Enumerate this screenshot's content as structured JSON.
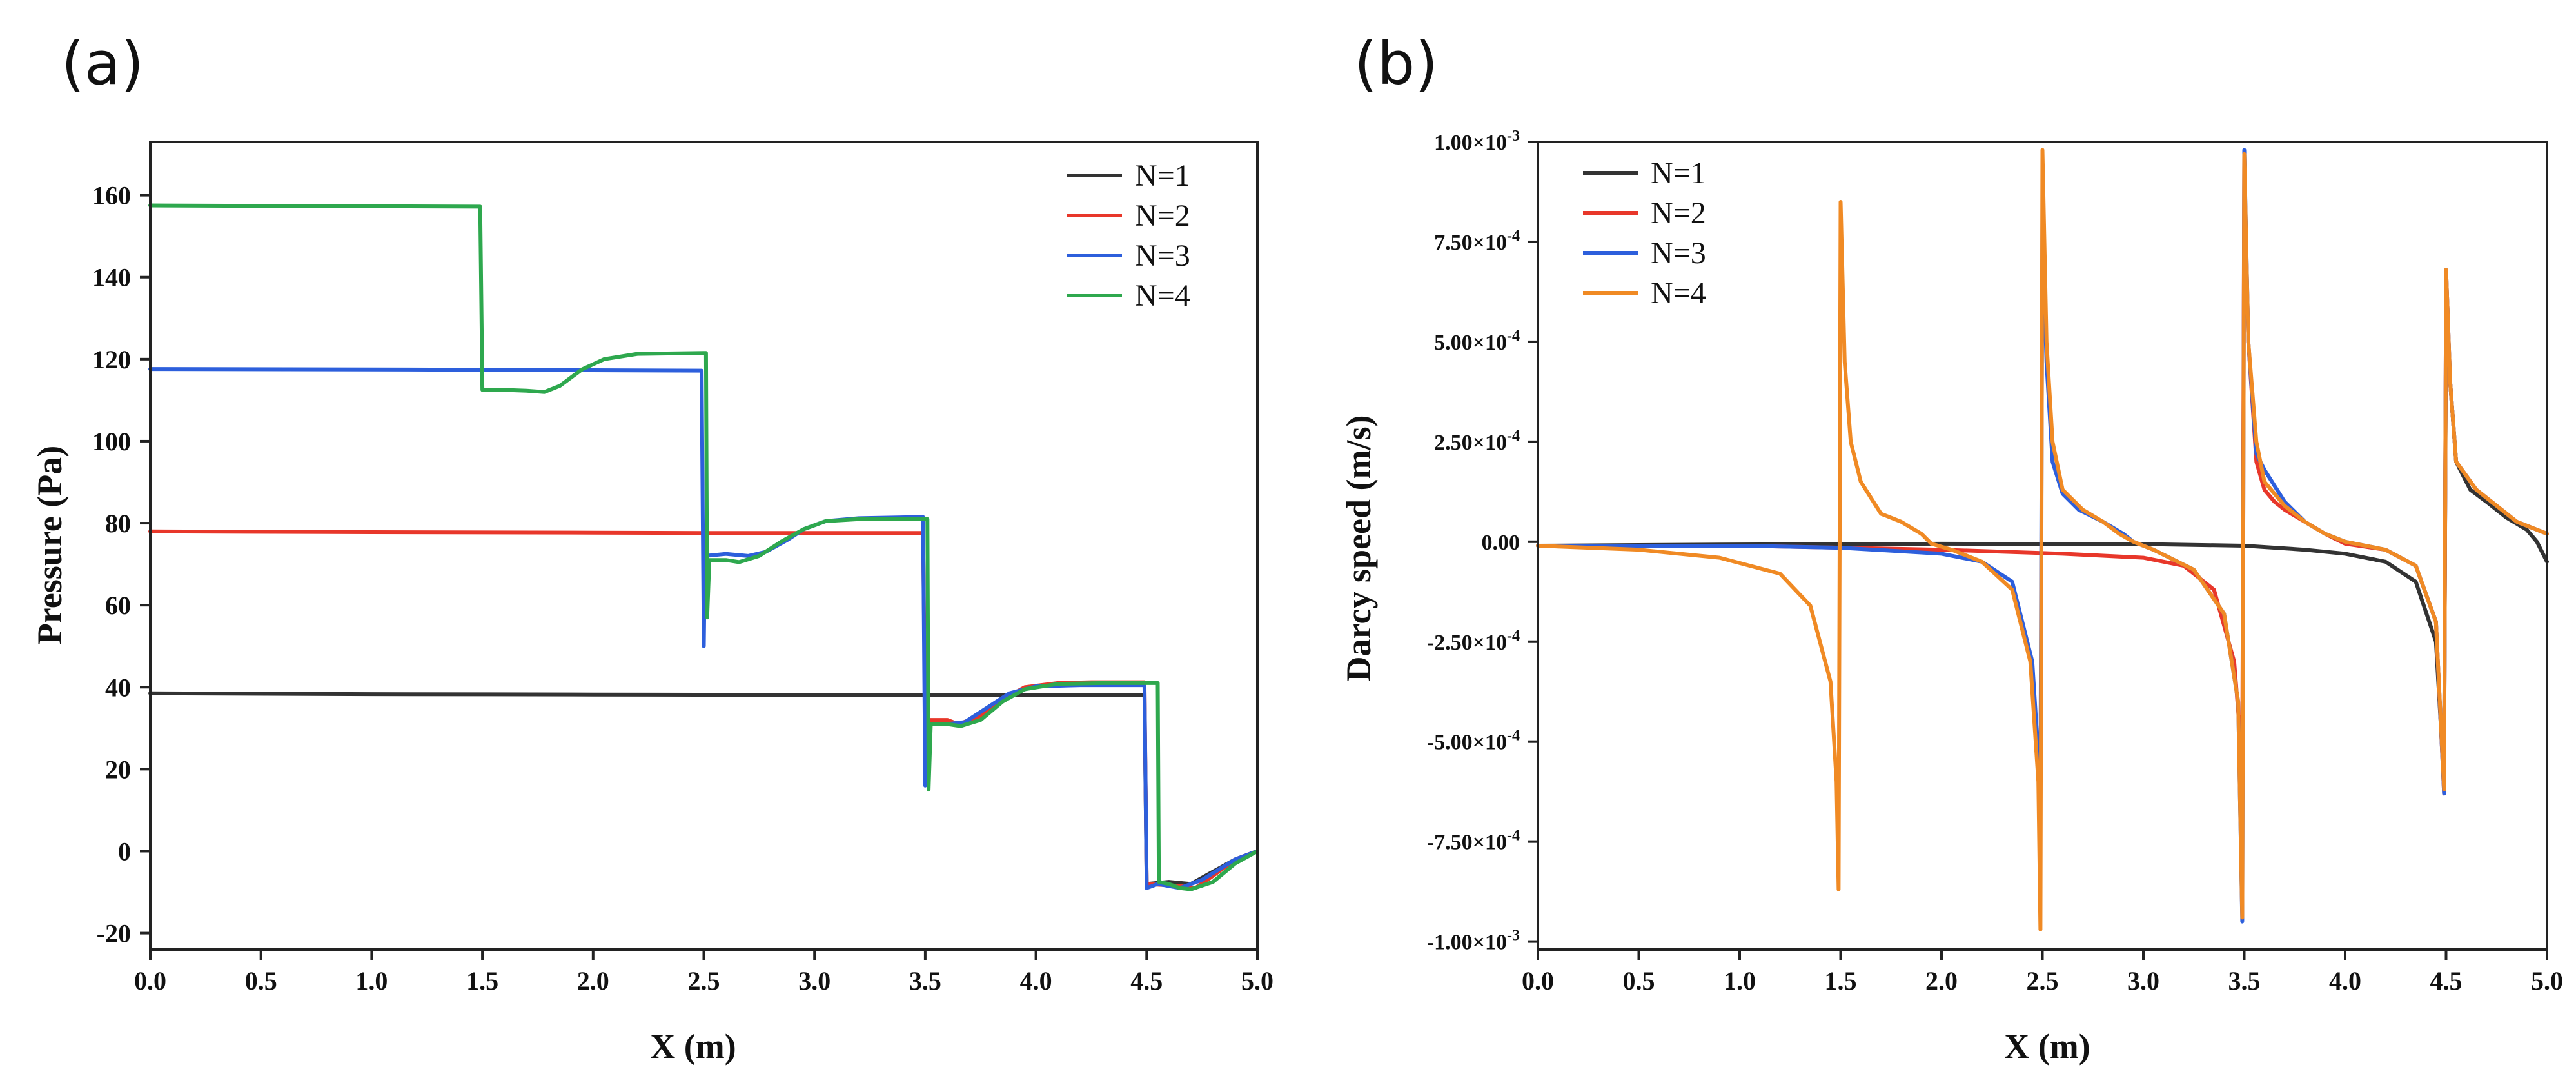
{
  "chart_data": [
    {
      "panel_label": "(a)",
      "type": "line",
      "title": "",
      "xlabel": "X (m)",
      "ylabel": "Pressure (Pa)",
      "xlim": [
        0,
        5
      ],
      "ylim": [
        -24,
        173
      ],
      "xticks": [
        0,
        0.5,
        1,
        1.5,
        2,
        2.5,
        3,
        3.5,
        4,
        4.5,
        5
      ],
      "xtick_labels": [
        "0.0",
        "0.5",
        "1.0",
        "1.5",
        "2.0",
        "2.5",
        "3.0",
        "3.5",
        "4.0",
        "4.5",
        "5.0"
      ],
      "yticks": [
        -20,
        0,
        20,
        40,
        60,
        80,
        100,
        120,
        140,
        160
      ],
      "ytick_labels": [
        "-20",
        "0",
        "20",
        "40",
        "60",
        "80",
        "100",
        "120",
        "140",
        "160"
      ],
      "legend_position": "top-right",
      "series": [
        {
          "name": "N=1",
          "color": "#333333",
          "points": [
            [
              0,
              38.5
            ],
            [
              1,
              38.3
            ],
            [
              2,
              38.2
            ],
            [
              3,
              38.1
            ],
            [
              4,
              38
            ],
            [
              4.49,
              38
            ],
            [
              4.5,
              -8
            ],
            [
              4.6,
              -7.5
            ],
            [
              4.7,
              -8
            ],
            [
              4.8,
              -5
            ],
            [
              4.9,
              -2
            ],
            [
              5,
              0
            ]
          ]
        },
        {
          "name": "N=2",
          "color": "#e8372a",
          "points": [
            [
              0,
              78
            ],
            [
              1,
              77.8
            ],
            [
              2,
              77.7
            ],
            [
              2.5,
              77.6
            ],
            [
              3,
              77.6
            ],
            [
              3.49,
              77.6
            ],
            [
              3.5,
              32
            ],
            [
              3.6,
              32
            ],
            [
              3.65,
              31
            ],
            [
              3.75,
              33
            ],
            [
              3.85,
              37
            ],
            [
              3.95,
              40
            ],
            [
              4.1,
              41
            ],
            [
              4.25,
              41.2
            ],
            [
              4.49,
              41.2
            ],
            [
              4.5,
              -8
            ],
            [
              4.65,
              -8.5
            ],
            [
              4.72,
              -9
            ],
            [
              4.8,
              -6
            ],
            [
              4.9,
              -2
            ],
            [
              5,
              0
            ]
          ]
        },
        {
          "name": "N=3",
          "color": "#2d5fdc",
          "points": [
            [
              0,
              117.6
            ],
            [
              1,
              117.5
            ],
            [
              2,
              117.3
            ],
            [
              2.49,
              117.2
            ],
            [
              2.5,
              50
            ],
            [
              2.505,
              72
            ],
            [
              2.6,
              72.5
            ],
            [
              2.7,
              72
            ],
            [
              2.78,
              73
            ],
            [
              2.88,
              76
            ],
            [
              2.95,
              78.5
            ],
            [
              3.05,
              80.5
            ],
            [
              3.2,
              81.2
            ],
            [
              3.49,
              81.5
            ],
            [
              3.5,
              16
            ],
            [
              3.505,
              31
            ],
            [
              3.6,
              31
            ],
            [
              3.68,
              31.5
            ],
            [
              3.78,
              35
            ],
            [
              3.88,
              38.5
            ],
            [
              4,
              40.2
            ],
            [
              4.2,
              40.5
            ],
            [
              4.49,
              40.5
            ],
            [
              4.5,
              -9
            ],
            [
              4.55,
              -8
            ],
            [
              4.65,
              -9
            ],
            [
              4.75,
              -7
            ],
            [
              4.9,
              -2
            ],
            [
              5,
              0
            ]
          ]
        },
        {
          "name": "N=4",
          "color": "#2ea84e",
          "points": [
            [
              0,
              157.5
            ],
            [
              1,
              157.3
            ],
            [
              1.49,
              157.2
            ],
            [
              1.5,
              112.5
            ],
            [
              1.6,
              112.5
            ],
            [
              1.7,
              112.3
            ],
            [
              1.78,
              112
            ],
            [
              1.85,
              113.5
            ],
            [
              1.95,
              117.5
            ],
            [
              2.05,
              120
            ],
            [
              2.2,
              121.3
            ],
            [
              2.5,
              121.5
            ],
            [
              2.51,
              121.5
            ],
            [
              2.515,
              57
            ],
            [
              2.525,
              71
            ],
            [
              2.6,
              71
            ],
            [
              2.66,
              70.5
            ],
            [
              2.75,
              72
            ],
            [
              2.85,
              75.5
            ],
            [
              2.95,
              78.5
            ],
            [
              3.05,
              80.5
            ],
            [
              3.2,
              81
            ],
            [
              3.51,
              81
            ],
            [
              3.515,
              15
            ],
            [
              3.525,
              31
            ],
            [
              3.6,
              31
            ],
            [
              3.66,
              30.5
            ],
            [
              3.75,
              32
            ],
            [
              3.85,
              36.5
            ],
            [
              3.95,
              39.5
            ],
            [
              4.1,
              40.8
            ],
            [
              4.3,
              41
            ],
            [
              4.55,
              41
            ],
            [
              4.555,
              -7.5
            ],
            [
              4.6,
              -8
            ],
            [
              4.65,
              -9
            ],
            [
              4.7,
              -9.3
            ],
            [
              4.8,
              -7.5
            ],
            [
              4.9,
              -3
            ],
            [
              5,
              0
            ]
          ]
        }
      ]
    },
    {
      "panel_label": "(b)",
      "type": "line",
      "title": "",
      "xlabel": "X (m)",
      "ylabel": "Darcy speed (m/s)",
      "xlim": [
        0,
        5
      ],
      "ylim": [
        -1.02,
        1.0
      ],
      "y_unit_note": "values in units of 1e-3 m/s",
      "xticks": [
        0,
        0.5,
        1,
        1.5,
        2,
        2.5,
        3,
        3.5,
        4,
        4.5,
        5
      ],
      "xtick_labels": [
        "0.0",
        "0.5",
        "1.0",
        "1.5",
        "2.0",
        "2.5",
        "3.0",
        "3.5",
        "4.0",
        "4.5",
        "5.0"
      ],
      "yticks": [
        -1.0,
        -0.75,
        -0.5,
        -0.25,
        0,
        0.25,
        0.5,
        0.75,
        1.0
      ],
      "ytick_labels": [
        {
          "m": "-1.00",
          "e": "-3"
        },
        {
          "m": "-7.50",
          "e": "-4"
        },
        {
          "m": "-5.00",
          "e": "-4"
        },
        {
          "m": "-2.50",
          "e": "-4"
        },
        {
          "m": "0.00",
          "e": ""
        },
        {
          "m": "2.50",
          "e": "-4"
        },
        {
          "m": "5.00",
          "e": "-4"
        },
        {
          "m": "7.50",
          "e": "-4"
        },
        {
          "m": "1.00",
          "e": "-3"
        }
      ],
      "legend_position": "top-left",
      "series": [
        {
          "name": "N=1",
          "color": "#333333",
          "points": [
            [
              0,
              -0.01
            ],
            [
              1,
              -0.007
            ],
            [
              2,
              -0.005
            ],
            [
              3,
              -0.006
            ],
            [
              3.5,
              -0.01
            ],
            [
              3.8,
              -0.02
            ],
            [
              4,
              -0.03
            ],
            [
              4.2,
              -0.05
            ],
            [
              4.35,
              -0.1
            ],
            [
              4.45,
              -0.25
            ],
            [
              4.49,
              -0.6
            ],
            [
              4.5,
              0.62
            ],
            [
              4.52,
              0.4
            ],
            [
              4.55,
              0.2
            ],
            [
              4.62,
              0.13
            ],
            [
              4.7,
              0.1
            ],
            [
              4.8,
              0.06
            ],
            [
              4.9,
              0.03
            ],
            [
              4.95,
              0
            ],
            [
              5,
              -0.05
            ]
          ]
        },
        {
          "name": "N=2",
          "color": "#e8372a",
          "points": [
            [
              0,
              -0.01
            ],
            [
              1,
              -0.01
            ],
            [
              2,
              -0.02
            ],
            [
              2.6,
              -0.03
            ],
            [
              3,
              -0.04
            ],
            [
              3.2,
              -0.06
            ],
            [
              3.35,
              -0.12
            ],
            [
              3.45,
              -0.3
            ],
            [
              3.49,
              -0.55
            ],
            [
              3.5,
              0.95
            ],
            [
              3.52,
              0.5
            ],
            [
              3.56,
              0.2
            ],
            [
              3.6,
              0.13
            ],
            [
              3.65,
              0.1
            ],
            [
              3.7,
              0.08
            ],
            [
              3.8,
              0.05
            ],
            [
              3.9,
              0.02
            ],
            [
              4,
              -0.005
            ],
            [
              4.2,
              -0.02
            ],
            [
              4.35,
              -0.06
            ],
            [
              4.45,
              -0.2
            ],
            [
              4.49,
              -0.63
            ],
            [
              4.5,
              0.68
            ],
            [
              4.52,
              0.4
            ],
            [
              4.55,
              0.2
            ],
            [
              4.65,
              0.13
            ],
            [
              4.75,
              0.09
            ],
            [
              4.85,
              0.05
            ],
            [
              5,
              0.02
            ]
          ]
        },
        {
          "name": "N=3",
          "color": "#2d5fdc",
          "points": [
            [
              0,
              -0.01
            ],
            [
              1,
              -0.01
            ],
            [
              1.5,
              -0.015
            ],
            [
              2,
              -0.03
            ],
            [
              2.2,
              -0.05
            ],
            [
              2.35,
              -0.1
            ],
            [
              2.45,
              -0.3
            ],
            [
              2.49,
              -0.62
            ],
            [
              2.5,
              0.8
            ],
            [
              2.52,
              0.45
            ],
            [
              2.55,
              0.2
            ],
            [
              2.6,
              0.12
            ],
            [
              2.68,
              0.08
            ],
            [
              2.8,
              0.05
            ],
            [
              2.9,
              0.02
            ],
            [
              2.95,
              0
            ],
            [
              3.05,
              -0.02
            ],
            [
              3.25,
              -0.07
            ],
            [
              3.4,
              -0.18
            ],
            [
              3.47,
              -0.4
            ],
            [
              3.49,
              -0.95
            ],
            [
              3.5,
              0.98
            ],
            [
              3.52,
              0.5
            ],
            [
              3.56,
              0.22
            ],
            [
              3.6,
              0.18
            ],
            [
              3.7,
              0.1
            ],
            [
              3.8,
              0.05
            ],
            [
              3.9,
              0.02
            ],
            [
              4,
              0
            ],
            [
              4.2,
              -0.02
            ],
            [
              4.35,
              -0.06
            ],
            [
              4.45,
              -0.2
            ],
            [
              4.49,
              -0.63
            ],
            [
              4.5,
              0.68
            ],
            [
              4.52,
              0.4
            ],
            [
              4.55,
              0.2
            ],
            [
              4.65,
              0.13
            ],
            [
              4.75,
              0.09
            ],
            [
              4.85,
              0.05
            ],
            [
              5,
              0.02
            ]
          ]
        },
        {
          "name": "N=4",
          "color": "#f08a24",
          "points": [
            [
              0,
              -0.01
            ],
            [
              0.5,
              -0.02
            ],
            [
              0.9,
              -0.04
            ],
            [
              1.2,
              -0.08
            ],
            [
              1.35,
              -0.16
            ],
            [
              1.45,
              -0.35
            ],
            [
              1.48,
              -0.6
            ],
            [
              1.49,
              -0.87
            ],
            [
              1.5,
              0.85
            ],
            [
              1.52,
              0.45
            ],
            [
              1.55,
              0.25
            ],
            [
              1.6,
              0.15
            ],
            [
              1.7,
              0.07
            ],
            [
              1.8,
              0.05
            ],
            [
              1.9,
              0.02
            ],
            [
              1.95,
              -0.005
            ],
            [
              2.05,
              -0.02
            ],
            [
              2.2,
              -0.05
            ],
            [
              2.35,
              -0.12
            ],
            [
              2.44,
              -0.3
            ],
            [
              2.48,
              -0.6
            ],
            [
              2.49,
              -0.97
            ],
            [
              2.5,
              0.98
            ],
            [
              2.52,
              0.5
            ],
            [
              2.55,
              0.25
            ],
            [
              2.6,
              0.13
            ],
            [
              2.7,
              0.08
            ],
            [
              2.8,
              0.05
            ],
            [
              2.88,
              0.02
            ],
            [
              2.95,
              0
            ],
            [
              3.05,
              -0.02
            ],
            [
              3.25,
              -0.07
            ],
            [
              3.4,
              -0.18
            ],
            [
              3.47,
              -0.4
            ],
            [
              3.49,
              -0.94
            ],
            [
              3.5,
              0.97
            ],
            [
              3.52,
              0.5
            ],
            [
              3.56,
              0.25
            ],
            [
              3.6,
              0.15
            ],
            [
              3.7,
              0.09
            ],
            [
              3.8,
              0.05
            ],
            [
              3.9,
              0.02
            ],
            [
              4,
              0
            ],
            [
              4.2,
              -0.02
            ],
            [
              4.35,
              -0.06
            ],
            [
              4.45,
              -0.2
            ],
            [
              4.49,
              -0.62
            ],
            [
              4.5,
              0.68
            ],
            [
              4.52,
              0.4
            ],
            [
              4.55,
              0.2
            ],
            [
              4.65,
              0.13
            ],
            [
              4.75,
              0.09
            ],
            [
              4.85,
              0.05
            ],
            [
              5,
              0.02
            ]
          ]
        }
      ]
    }
  ]
}
